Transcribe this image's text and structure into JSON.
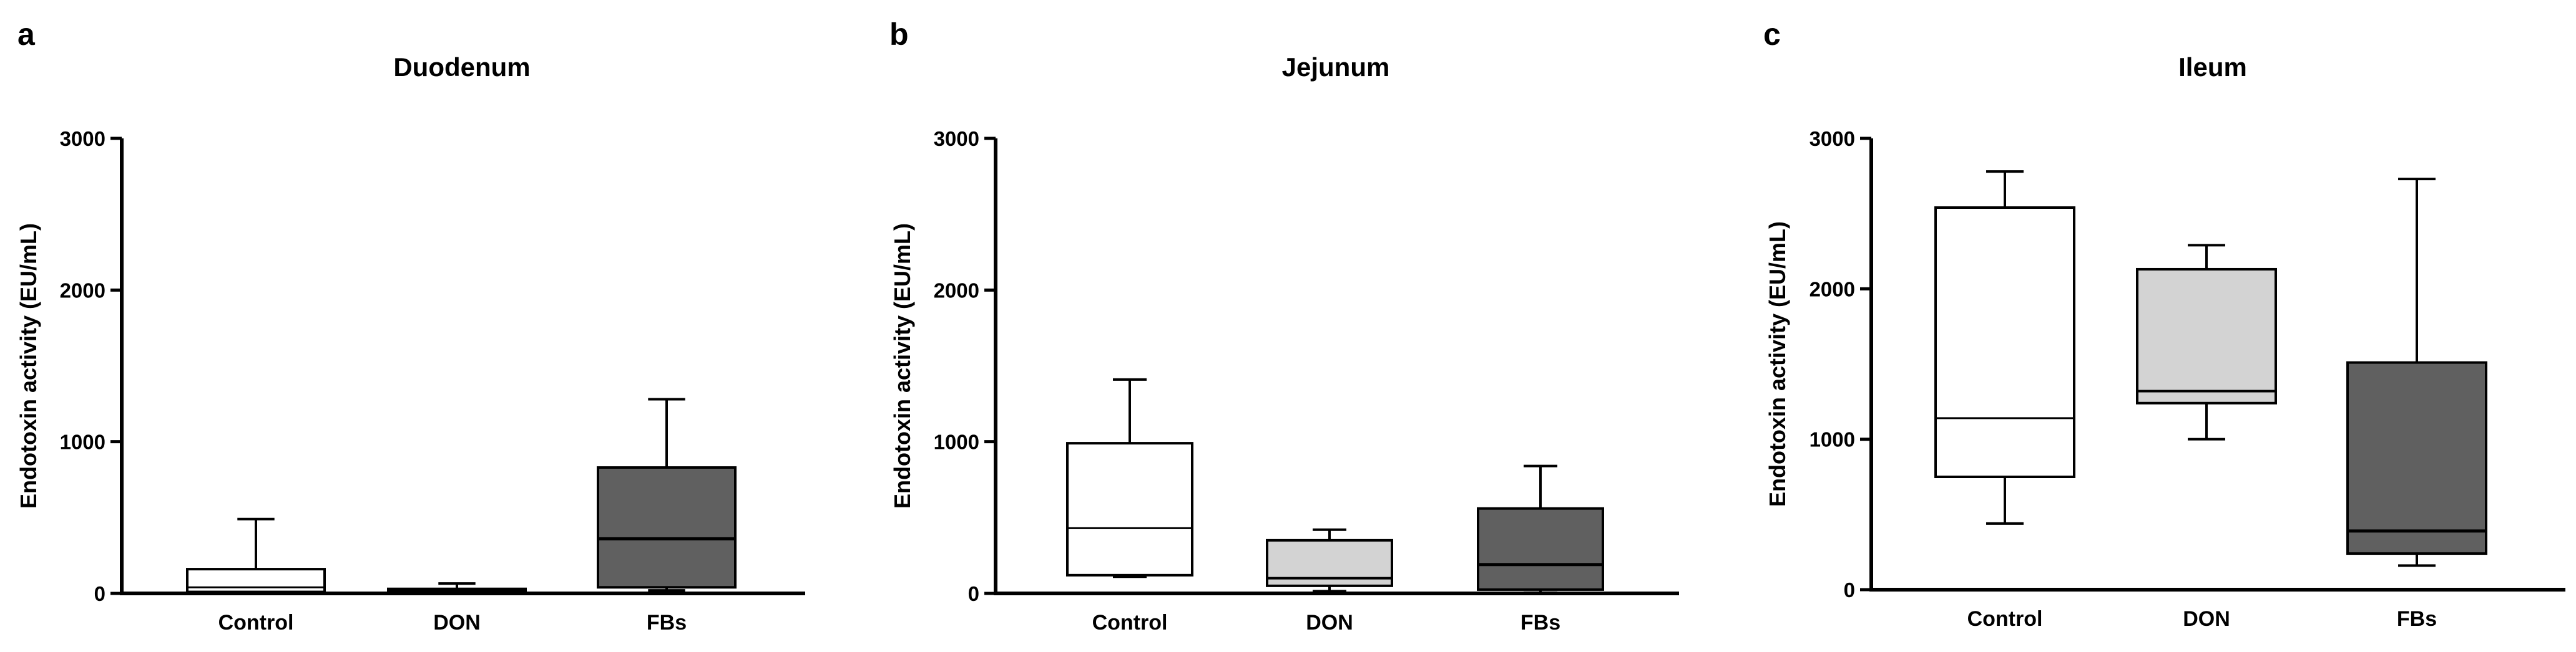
{
  "chart_data": [
    {
      "panel": "a",
      "type": "box",
      "title": "Duodenum",
      "xlabel": "",
      "ylabel": "Endotoxin activity (EU/mL)",
      "ylim": [
        0,
        3000
      ],
      "yticks": [
        0,
        1000,
        2000,
        3000
      ],
      "categories": [
        "Control",
        "DON",
        "FBs"
      ],
      "series": [
        {
          "whisker_low": 0,
          "q1": 10,
          "median": 40,
          "q3": 160,
          "whisker_high": 490,
          "fill": "#ffffff"
        },
        {
          "whisker_low": 0,
          "q1": 5,
          "median": 15,
          "q3": 30,
          "whisker_high": 65,
          "fill": "#d3d3d3"
        },
        {
          "whisker_low": 20,
          "q1": 40,
          "median": 360,
          "q3": 830,
          "whisker_high": 1280,
          "fill": "#606060"
        }
      ],
      "grid": false
    },
    {
      "panel": "b",
      "type": "box",
      "title": "Jejunum",
      "xlabel": "",
      "ylabel": "Endotoxin activity (EU/mL)",
      "ylim": [
        0,
        3000
      ],
      "yticks": [
        0,
        1000,
        2000,
        3000
      ],
      "categories": [
        "Control",
        "DON",
        "FBs"
      ],
      "series": [
        {
          "whisker_low": 110,
          "q1": 120,
          "median": 430,
          "q3": 990,
          "whisker_high": 1410,
          "fill": "#ffffff"
        },
        {
          "whisker_low": 15,
          "q1": 50,
          "median": 100,
          "q3": 350,
          "whisker_high": 420,
          "fill": "#d3d3d3"
        },
        {
          "whisker_low": 5,
          "q1": 25,
          "median": 190,
          "q3": 560,
          "whisker_high": 840,
          "fill": "#606060"
        }
      ],
      "grid": false
    },
    {
      "panel": "c",
      "type": "box",
      "title": "Ileum",
      "xlabel": "",
      "ylabel": "Endotoxin activity (EU/mL)",
      "ylim": [
        0,
        3000
      ],
      "yticks": [
        0,
        1000,
        2000,
        3000
      ],
      "categories": [
        "Control",
        "DON",
        "FBs"
      ],
      "series": [
        {
          "whisker_low": 440,
          "q1": 750,
          "median": 1140,
          "q3": 2540,
          "whisker_high": 2780,
          "fill": "#ffffff"
        },
        {
          "whisker_low": 1000,
          "q1": 1240,
          "median": 1320,
          "q3": 2130,
          "whisker_high": 2290,
          "fill": "#d3d3d3"
        },
        {
          "whisker_low": 160,
          "q1": 240,
          "median": 390,
          "q3": 1510,
          "whisker_high": 2730,
          "fill": "#606060"
        }
      ],
      "grid": false
    }
  ]
}
